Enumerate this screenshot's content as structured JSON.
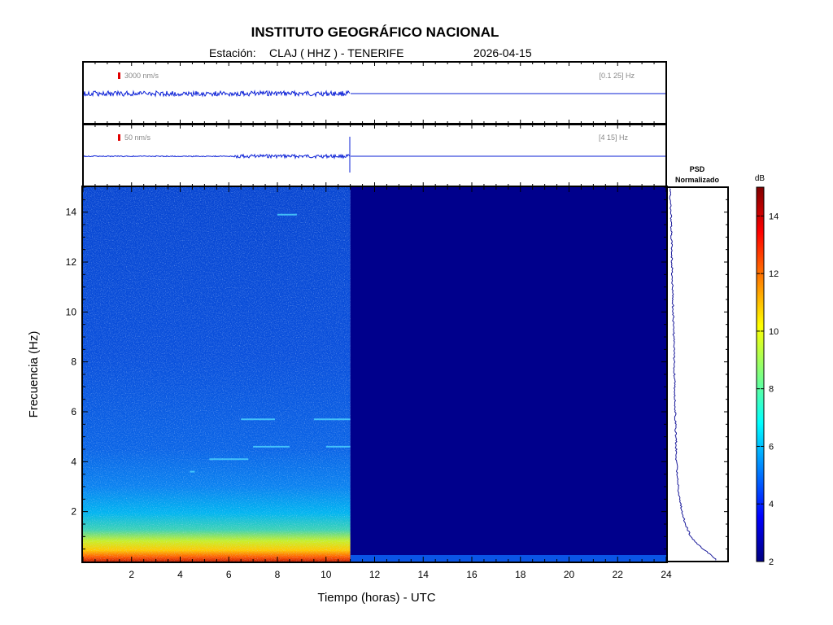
{
  "header": {
    "title": "INSTITUTO GEOGRÁFICO NACIONAL",
    "station_label": "Estación:",
    "station": "CLAJ ( HHZ ) - TENERIFE",
    "date": "2026-04-15"
  },
  "traces": [
    {
      "scale_label": "3000 nm/s",
      "band": "[0.1 25] Hz",
      "data_end_hour": 11
    },
    {
      "scale_label": "50 nm/s",
      "band": "[4 15] Hz",
      "data_end_hour": 11
    }
  ],
  "psd_title": [
    "PSD",
    "Normalizado"
  ],
  "colorbar": {
    "unit": "dB",
    "ticks": [
      2,
      4,
      6,
      8,
      10,
      12,
      14
    ],
    "range": [
      2,
      15
    ]
  },
  "colors": {
    "trace": "#0a1fd6",
    "scale_bar": "#e00000",
    "psd_line": "#1a1a9a",
    "no_data": "#00008c"
  },
  "chart_data": {
    "type": "heatmap",
    "xlabel": "Tiempo (horas) - UTC",
    "ylabel": "Frecuencia  (Hz)",
    "xlim": [
      0,
      24
    ],
    "ylim": [
      0,
      15
    ],
    "xticks": [
      2,
      4,
      6,
      8,
      10,
      12,
      14,
      16,
      18,
      20,
      22,
      24
    ],
    "yticks": [
      2,
      4,
      6,
      8,
      10,
      12,
      14
    ],
    "data_end_hour": 11,
    "band_energy_db": [
      {
        "freq_range": [
          0,
          0.5
        ],
        "db": 12.5
      },
      {
        "freq_range": [
          0.5,
          1.2
        ],
        "db": 10
      },
      {
        "freq_range": [
          1.2,
          2.5
        ],
        "db": 6.5
      },
      {
        "freq_range": [
          2.5,
          4
        ],
        "db": 4.5
      },
      {
        "freq_range": [
          4,
          15
        ],
        "db": 3.5
      }
    ],
    "after_data_end_db": 2,
    "psd_normalized": {
      "freq": [
        0.1,
        0.3,
        0.5,
        0.8,
        1,
        1.5,
        2,
        2.5,
        3,
        4,
        5,
        6,
        8,
        10,
        12,
        14,
        15
      ],
      "value": [
        0.85,
        0.75,
        0.62,
        0.48,
        0.4,
        0.3,
        0.24,
        0.2,
        0.17,
        0.14,
        0.13,
        0.12,
        0.1,
        0.08,
        0.06,
        0.04,
        0.02
      ]
    }
  }
}
